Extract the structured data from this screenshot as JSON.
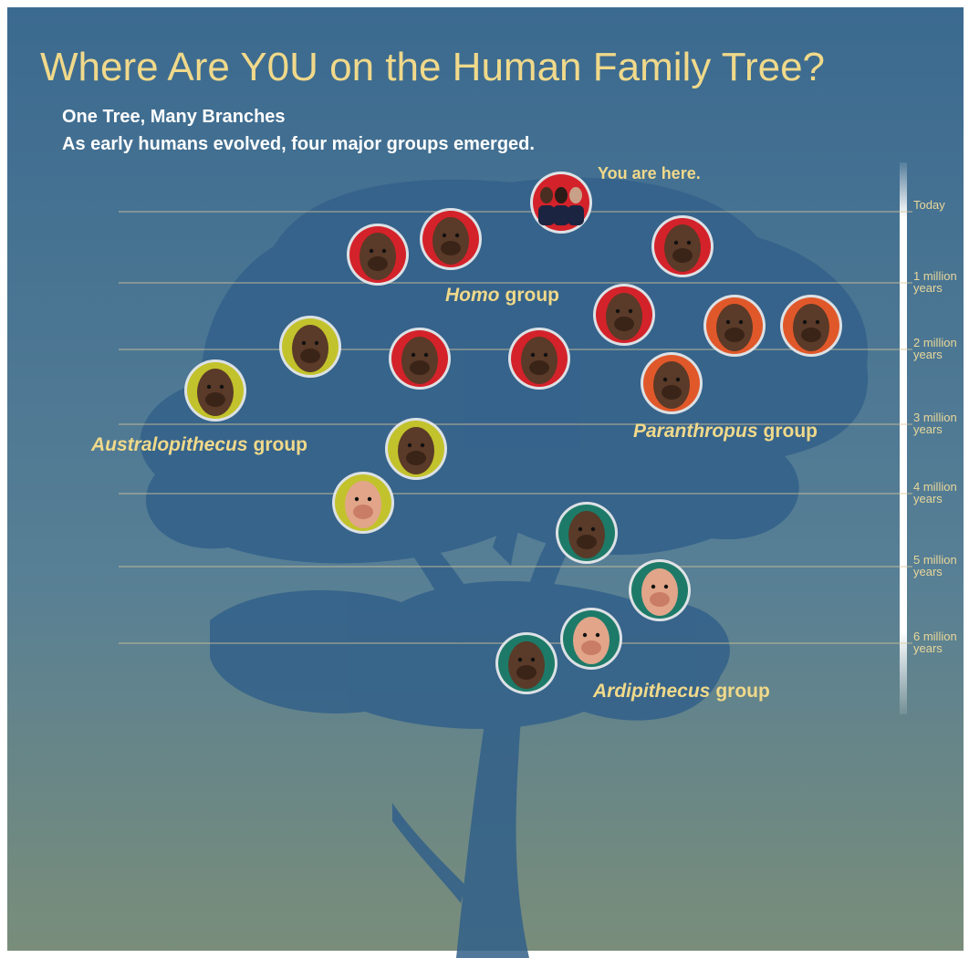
{
  "header": {
    "title": "Where Are Y0U on the Human Family Tree?",
    "subtitle": "One Tree, Many Branches",
    "description": "As early humans evolved, four major groups emerged."
  },
  "marker": "You are here.",
  "groups": [
    {
      "italic": "Homo",
      "rest": "group"
    },
    {
      "italic": "Paranthropus",
      "rest": "group"
    },
    {
      "italic": "Australopithecus",
      "rest": "group"
    },
    {
      "italic": "Ardipithecus",
      "rest": "group"
    }
  ],
  "timeline": [
    [
      "Today"
    ],
    [
      "1 million",
      "years"
    ],
    [
      "2 million",
      "years"
    ],
    [
      "3 million",
      "years"
    ],
    [
      "4 million",
      "years"
    ],
    [
      "5 million",
      "years"
    ],
    [
      "6 million",
      "years"
    ]
  ]
}
